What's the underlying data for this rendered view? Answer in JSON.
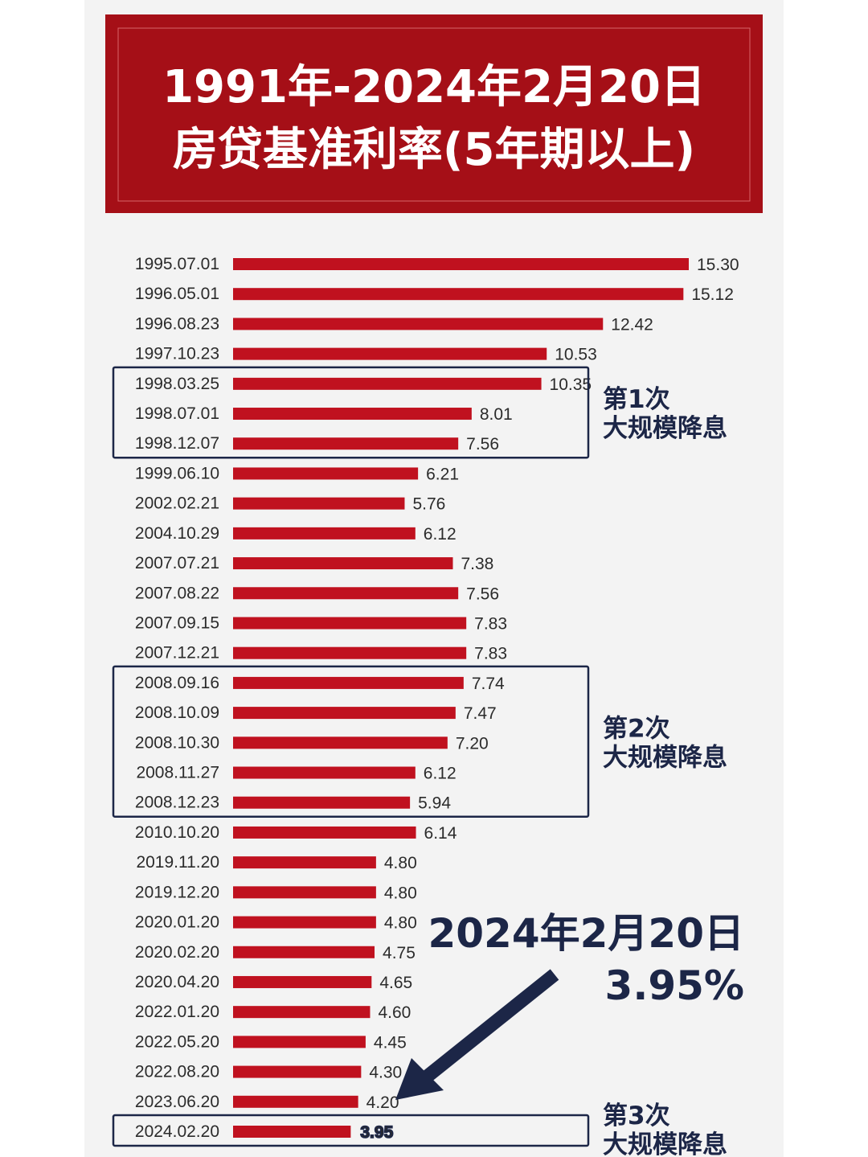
{
  "chart_data": {
    "type": "bar",
    "orientation": "horizontal",
    "title": [
      "1991年-2024年2月20日",
      "房贷基准利率(5年期以上)"
    ],
    "categories": [
      "1995.07.01",
      "1996.05.01",
      "1996.08.23",
      "1997.10.23",
      "1998.03.25",
      "1998.07.01",
      "1998.12.07",
      "1999.06.10",
      "2002.02.21",
      "2004.10.29",
      "2007.07.21",
      "2007.08.22",
      "2007.09.15",
      "2007.12.21",
      "2008.09.16",
      "2008.10.09",
      "2008.10.30",
      "2008.11.27",
      "2008.12.23",
      "2010.10.20",
      "2019.11.20",
      "2019.12.20",
      "2020.01.20",
      "2020.02.20",
      "2020.04.20",
      "2022.01.20",
      "2022.05.20",
      "2022.08.20",
      "2023.06.20",
      "2024.02.20"
    ],
    "values": [
      15.3,
      15.12,
      12.42,
      10.53,
      10.35,
      8.01,
      7.56,
      6.21,
      5.76,
      6.12,
      7.38,
      7.56,
      7.83,
      7.83,
      7.74,
      7.47,
      7.2,
      6.12,
      5.94,
      6.14,
      4.8,
      4.8,
      4.8,
      4.75,
      4.65,
      4.6,
      4.45,
      4.3,
      4.2,
      3.95
    ],
    "value_labels": [
      "15.30",
      "15.12",
      "12.42",
      "10.53",
      "10.35",
      "8.01",
      "7.56",
      "6.21",
      "5.76",
      "6.12",
      "7.38",
      "7.56",
      "7.83",
      "7.83",
      "7.74",
      "7.47",
      "7.20",
      "6.12",
      "5.94",
      "6.14",
      "4.80",
      "4.80",
      "4.80",
      "4.75",
      "4.65",
      "4.60",
      "4.45",
      "4.30",
      "4.20",
      "3.95"
    ],
    "xlim": [
      0,
      15.3
    ],
    "grid": false,
    "legend": "none",
    "groups": [
      {
        "label": [
          "第1次",
          "大规模降息"
        ],
        "from": "1998.03.25",
        "to": "1998.12.07"
      },
      {
        "label": [
          "第2次",
          "大规模降息"
        ],
        "from": "2008.09.16",
        "to": "2008.12.23"
      },
      {
        "label": [
          "第3次",
          "大规模降息"
        ],
        "from": "2024.02.20",
        "to": "2024.02.20"
      }
    ],
    "callout": {
      "line1": "2024年2月20日",
      "line2": "3.95%",
      "points_to": "2024.02.20"
    }
  },
  "colors": {
    "bar": "#c0111f",
    "title_bg": "#a50f17",
    "accent": "#1c2647",
    "panel": "#f3f3f3"
  }
}
